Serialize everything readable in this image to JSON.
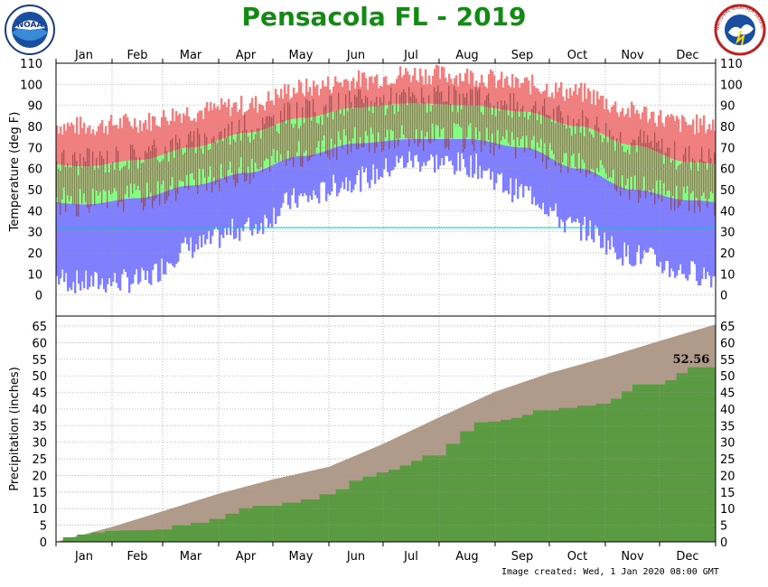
{
  "title": "Pensacola FL - 2019",
  "footer": "Image created: Wed, 1 Jan 2020 08:00 GMT",
  "logos": {
    "left": {
      "name": "noaa-logo",
      "text": "NOAA"
    },
    "right": {
      "name": "nws-logo",
      "text": "NATIONAL WEATHER SERVICE"
    }
  },
  "colors": {
    "title": "#118b11",
    "record_high": "#f08080",
    "normal_high": "#80ff80",
    "normal_low": "#8080ff",
    "observed_temp": "#7a2a2a",
    "normal_precip": "#b09a8a",
    "observed_precip": "#5a9a40",
    "freezing_line": "#00c8c8"
  },
  "chart_data": [
    {
      "type": "area",
      "name": "temperature",
      "ylabel": "Temperature (deg F)",
      "ylim": [
        -10,
        110
      ],
      "yticks": [
        0,
        10,
        20,
        30,
        40,
        50,
        60,
        70,
        80,
        90,
        100,
        110
      ],
      "months": [
        "Jan",
        "Feb",
        "Mar",
        "Apr",
        "May",
        "Jun",
        "Jul",
        "Aug",
        "Sep",
        "Oct",
        "Nov",
        "Dec"
      ],
      "freezing_line": 32,
      "monthly_normal_high": [
        61,
        64,
        70,
        77,
        84,
        89,
        91,
        90,
        87,
        80,
        71,
        63
      ],
      "monthly_normal_low": [
        43,
        46,
        52,
        58,
        66,
        72,
        74,
        74,
        70,
        60,
        50,
        45
      ],
      "monthly_record_high": [
        79,
        81,
        86,
        89,
        97,
        101,
        104,
        103,
        99,
        95,
        86,
        80
      ],
      "monthly_record_low": [
        7,
        8,
        24,
        33,
        47,
        56,
        65,
        63,
        50,
        33,
        20,
        12
      ]
    },
    {
      "type": "area",
      "name": "precipitation",
      "ylabel": "Precipitation (inches)",
      "ylim": [
        0,
        68
      ],
      "yticks": [
        0,
        5,
        10,
        15,
        20,
        25,
        30,
        35,
        40,
        45,
        50,
        55,
        60,
        65
      ],
      "months": [
        "Jan",
        "Feb",
        "Mar",
        "Apr",
        "May",
        "Jun",
        "Jul",
        "Aug",
        "Sep",
        "Oct",
        "Nov",
        "Dec"
      ],
      "normal_cumulative_end_of_month": [
        4.5,
        9.2,
        14.5,
        18.8,
        22.6,
        29.5,
        37.5,
        45.2,
        50.8,
        55.5,
        60.5,
        65.5
      ],
      "observed_cumulative_end_of_month": [
        3.3,
        3.7,
        6.9,
        10.8,
        14.3,
        20.9,
        26.0,
        36.2,
        39.6,
        41.6,
        47.4,
        52.56
      ],
      "annotation": "52.56"
    }
  ]
}
